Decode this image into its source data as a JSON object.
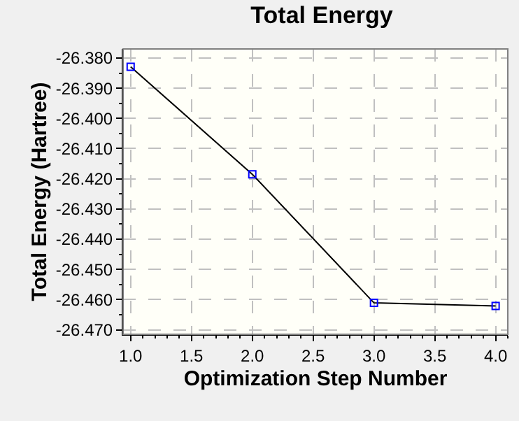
{
  "chart_data": {
    "type": "line",
    "title": "Total Energy",
    "xlabel": "Optimization Step Number",
    "ylabel": "Total Energy (Hartree)",
    "x": [
      1,
      2,
      3,
      4
    ],
    "series": [
      {
        "color": "#000000",
        "values": [
          -26.3829,
          -26.4185,
          -26.4611,
          -26.4621
        ]
      }
    ],
    "xlim": [
      0.938,
      4.1
    ],
    "xticks": [
      {
        "value": 1,
        "label": "1.0"
      },
      {
        "value": 1.5,
        "label": "1.5"
      },
      {
        "value": 2,
        "label": "2.0"
      },
      {
        "value": 2.5,
        "label": "2.5"
      },
      {
        "value": 3,
        "label": "3.0"
      },
      {
        "value": 3.5,
        "label": "3.5"
      },
      {
        "value": 4,
        "label": "4.0"
      }
    ],
    "ylim": [
      -26.4715,
      -26.377
    ],
    "yticks": [
      {
        "value": -26.38,
        "label": "-26.380"
      },
      {
        "value": -26.39,
        "label": "-26.390"
      },
      {
        "value": -26.4,
        "label": "-26.400"
      },
      {
        "value": -26.41,
        "label": "-26.410"
      },
      {
        "value": -26.42,
        "label": "-26.420"
      },
      {
        "value": -26.43,
        "label": "-26.430"
      },
      {
        "value": -26.44,
        "label": "-26.440"
      },
      {
        "value": -26.45,
        "label": "-26.450"
      },
      {
        "value": -26.46,
        "label": "-26.460"
      },
      {
        "value": -26.47,
        "label": "-26.470"
      }
    ],
    "grid": true,
    "marker": "square",
    "line_style": "solid"
  }
}
